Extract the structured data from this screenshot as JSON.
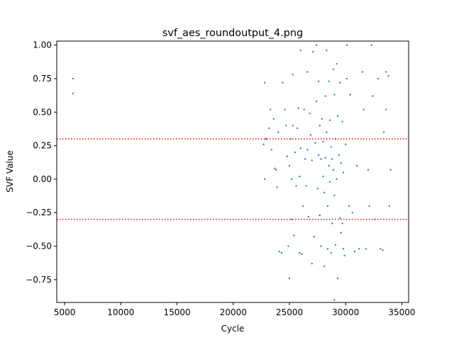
{
  "chart_data": {
    "type": "scatter",
    "title": "svf_aes_roundoutput_4.png",
    "xlabel": "Cycle",
    "ylabel": "SVF Value",
    "xlim": [
      4300,
      35600
    ],
    "ylim": [
      -0.92,
      1.03
    ],
    "xticks": [
      5000,
      10000,
      15000,
      20000,
      25000,
      30000,
      35000
    ],
    "xtick_labels": [
      "5000",
      "10000",
      "15000",
      "20000",
      "25000",
      "30000",
      "35000"
    ],
    "yticks": [
      -0.75,
      -0.5,
      -0.25,
      0.0,
      0.25,
      0.5,
      0.75,
      1.0
    ],
    "ytick_labels": [
      "−0.75",
      "−0.50",
      "−0.25",
      "0.00",
      "0.25",
      "0.50",
      "0.75",
      "1.00"
    ],
    "grid": false,
    "point_color": "#1f77b4",
    "threshold_color": "#ff0000",
    "thresholds": [
      0.3,
      -0.3
    ],
    "points": [
      [
        5750,
        0.75
      ],
      [
        5750,
        0.64
      ],
      [
        22700,
        0.26
      ],
      [
        22800,
        0.72
      ],
      [
        22800,
        0.0
      ],
      [
        22900,
        0.3
      ],
      [
        23000,
        0.3
      ],
      [
        23200,
        0.38
      ],
      [
        23300,
        0.52
      ],
      [
        23400,
        0.22
      ],
      [
        23600,
        0.45
      ],
      [
        23700,
        0.08
      ],
      [
        23800,
        0.07
      ],
      [
        23900,
        -0.06
      ],
      [
        24000,
        0.35
      ],
      [
        24100,
        -0.54
      ],
      [
        24300,
        -0.55
      ],
      [
        24400,
        0.72
      ],
      [
        24600,
        0.52
      ],
      [
        24700,
        0.4
      ],
      [
        24800,
        0.17
      ],
      [
        24900,
        -0.5
      ],
      [
        25000,
        0.1
      ],
      [
        25000,
        -0.74
      ],
      [
        25100,
        0.3
      ],
      [
        25200,
        0.0
      ],
      [
        25200,
        -0.3
      ],
      [
        25300,
        0.4
      ],
      [
        25300,
        0.78
      ],
      [
        25400,
        -0.42
      ],
      [
        25500,
        0.2
      ],
      [
        25600,
        -0.05
      ],
      [
        25700,
        0.38
      ],
      [
        25800,
        0.53
      ],
      [
        25900,
        0.02
      ],
      [
        25900,
        -0.55
      ],
      [
        26000,
        0.96
      ],
      [
        26000,
        0.23
      ],
      [
        26100,
        -0.56
      ],
      [
        26200,
        -0.2
      ],
      [
        26300,
        0.52
      ],
      [
        26400,
        0.15
      ],
      [
        26500,
        -0.05
      ],
      [
        26600,
        0.8
      ],
      [
        26600,
        0.22
      ],
      [
        26700,
        -0.28
      ],
      [
        26800,
        0.49
      ],
      [
        26900,
        0.33
      ],
      [
        27000,
        0.14
      ],
      [
        27000,
        -0.63
      ],
      [
        27100,
        0.95
      ],
      [
        27200,
        -0.43
      ],
      [
        27300,
        0.27
      ],
      [
        27400,
        1.0
      ],
      [
        27400,
        0.58
      ],
      [
        27500,
        -0.07
      ],
      [
        27600,
        0.18
      ],
      [
        27600,
        0.73
      ],
      [
        27700,
        0.4
      ],
      [
        27700,
        -0.27
      ],
      [
        27800,
        -0.5
      ],
      [
        27800,
        0.15
      ],
      [
        27900,
        0.45
      ],
      [
        28000,
        0.28
      ],
      [
        28000,
        0.02
      ],
      [
        28100,
        -0.65
      ],
      [
        28100,
        -0.1
      ],
      [
        28200,
        0.62
      ],
      [
        28200,
        0.16
      ],
      [
        28300,
        0.96
      ],
      [
        28300,
        0.35
      ],
      [
        28400,
        -0.52
      ],
      [
        28400,
        -0.2
      ],
      [
        28500,
        0.73
      ],
      [
        28500,
        0.1
      ],
      [
        28600,
        0.44
      ],
      [
        28600,
        -0.02
      ],
      [
        28700,
        0.24
      ],
      [
        28700,
        -0.55
      ],
      [
        28800,
        -0.33
      ],
      [
        28800,
        0.15
      ],
      [
        28900,
        0.82
      ],
      [
        28900,
        0.07
      ],
      [
        29000,
        0.63
      ],
      [
        29000,
        -0.12
      ],
      [
        29000,
        -0.9
      ],
      [
        29100,
        0.3
      ],
      [
        29100,
        -0.49
      ],
      [
        29200,
        0.86
      ],
      [
        29200,
        0.0
      ],
      [
        29300,
        -0.74
      ],
      [
        29300,
        0.47
      ],
      [
        29400,
        0.18
      ],
      [
        29500,
        -0.29
      ],
      [
        29500,
        0.72
      ],
      [
        29600,
        -0.4
      ],
      [
        29600,
        0.12
      ],
      [
        29700,
        -0.33
      ],
      [
        29700,
        0.43
      ],
      [
        29800,
        -0.52
      ],
      [
        29800,
        0.05
      ],
      [
        29900,
        -0.57
      ],
      [
        30000,
        0.26
      ],
      [
        30100,
        1.0
      ],
      [
        30100,
        0.75
      ],
      [
        30300,
        -0.2
      ],
      [
        30400,
        0.63
      ],
      [
        30600,
        -0.25
      ],
      [
        30800,
        -0.54
      ],
      [
        31000,
        0.1
      ],
      [
        31200,
        -0.52
      ],
      [
        31500,
        0.8
      ],
      [
        31600,
        0.52
      ],
      [
        31800,
        -0.52
      ],
      [
        32000,
        0.07
      ],
      [
        32100,
        -0.2
      ],
      [
        32300,
        1.0
      ],
      [
        32400,
        0.62
      ],
      [
        32600,
        -0.3
      ],
      [
        32900,
        0.75
      ],
      [
        33100,
        -0.52
      ],
      [
        33300,
        -0.53
      ],
      [
        33400,
        0.35
      ],
      [
        33600,
        0.8
      ],
      [
        33600,
        0.52
      ],
      [
        33800,
        0.77
      ],
      [
        33900,
        -0.2
      ],
      [
        34000,
        0.07
      ]
    ]
  }
}
